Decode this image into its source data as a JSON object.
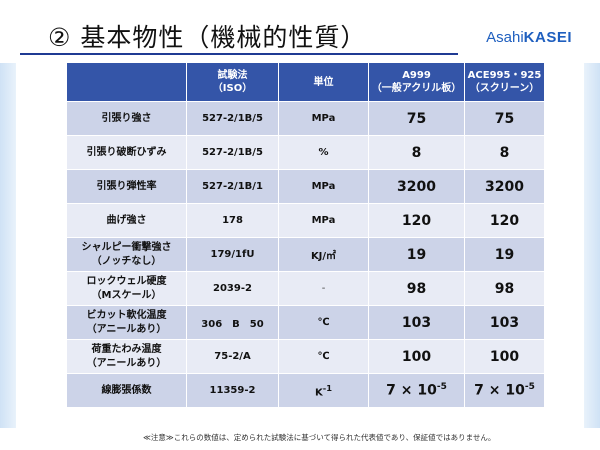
{
  "header": {
    "title": "② 基本物性（機械的性質）",
    "logo_part1": "Asahi",
    "logo_part2": "KASEI"
  },
  "table": {
    "headers": [
      {
        "line1": "",
        "line2": ""
      },
      {
        "line1": "試験法",
        "line2": "（ISO）"
      },
      {
        "line1": "単位",
        "line2": ""
      },
      {
        "line1": "A999",
        "line2": "（一般アクリル板）"
      },
      {
        "line1": "ACE995・925",
        "line2": "（スクリーン）"
      }
    ],
    "rows": [
      {
        "prop1": "引張り強さ",
        "prop2": "",
        "method": "527-2/1B/5",
        "unit": "MPa",
        "a999": "75",
        "ace": "75"
      },
      {
        "prop1": "引張り破断ひずみ",
        "prop2": "",
        "method": "527-2/1B/5",
        "unit": "%",
        "a999": "8",
        "ace": "8"
      },
      {
        "prop1": "引張り弾性率",
        "prop2": "",
        "method": "527-2/1B/1",
        "unit": "MPa",
        "a999": "3200",
        "ace": "3200"
      },
      {
        "prop1": "曲げ強さ",
        "prop2": "",
        "method": "178",
        "unit": "MPa",
        "a999": "120",
        "ace": "120"
      },
      {
        "prop1": "シャルピー衝撃強さ",
        "prop2": "（ノッチなし）",
        "method": "179/1fU",
        "unit": "KJ/㎡",
        "a999": "19",
        "ace": "19"
      },
      {
        "prop1": "ロックウェル硬度",
        "prop2": "（Mスケール）",
        "method": "2039-2",
        "unit": "-",
        "a999": "98",
        "ace": "98"
      },
      {
        "prop1": "ビカット軟化温度",
        "prop2": "（アニールあり）",
        "method": "306　B　50",
        "unit": "℃",
        "a999": "103",
        "ace": "103"
      },
      {
        "prop1": "荷重たわみ温度",
        "prop2": "（アニールあり）",
        "method": "75-2/A",
        "unit": "℃",
        "a999": "100",
        "ace": "100"
      },
      {
        "prop1": "線膨張係数",
        "prop2": "",
        "method": "11359-2",
        "unit": "K",
        "unit_sup": "-1",
        "a999": "7 × 10",
        "a999_sup": "-5",
        "ace": "7 × 10",
        "ace_sup": "-5"
      }
    ]
  },
  "footnote": "≪注意≫これらの数値は、定められた試験法に基づいて得られた代表値であり、保証値ではありません。"
}
